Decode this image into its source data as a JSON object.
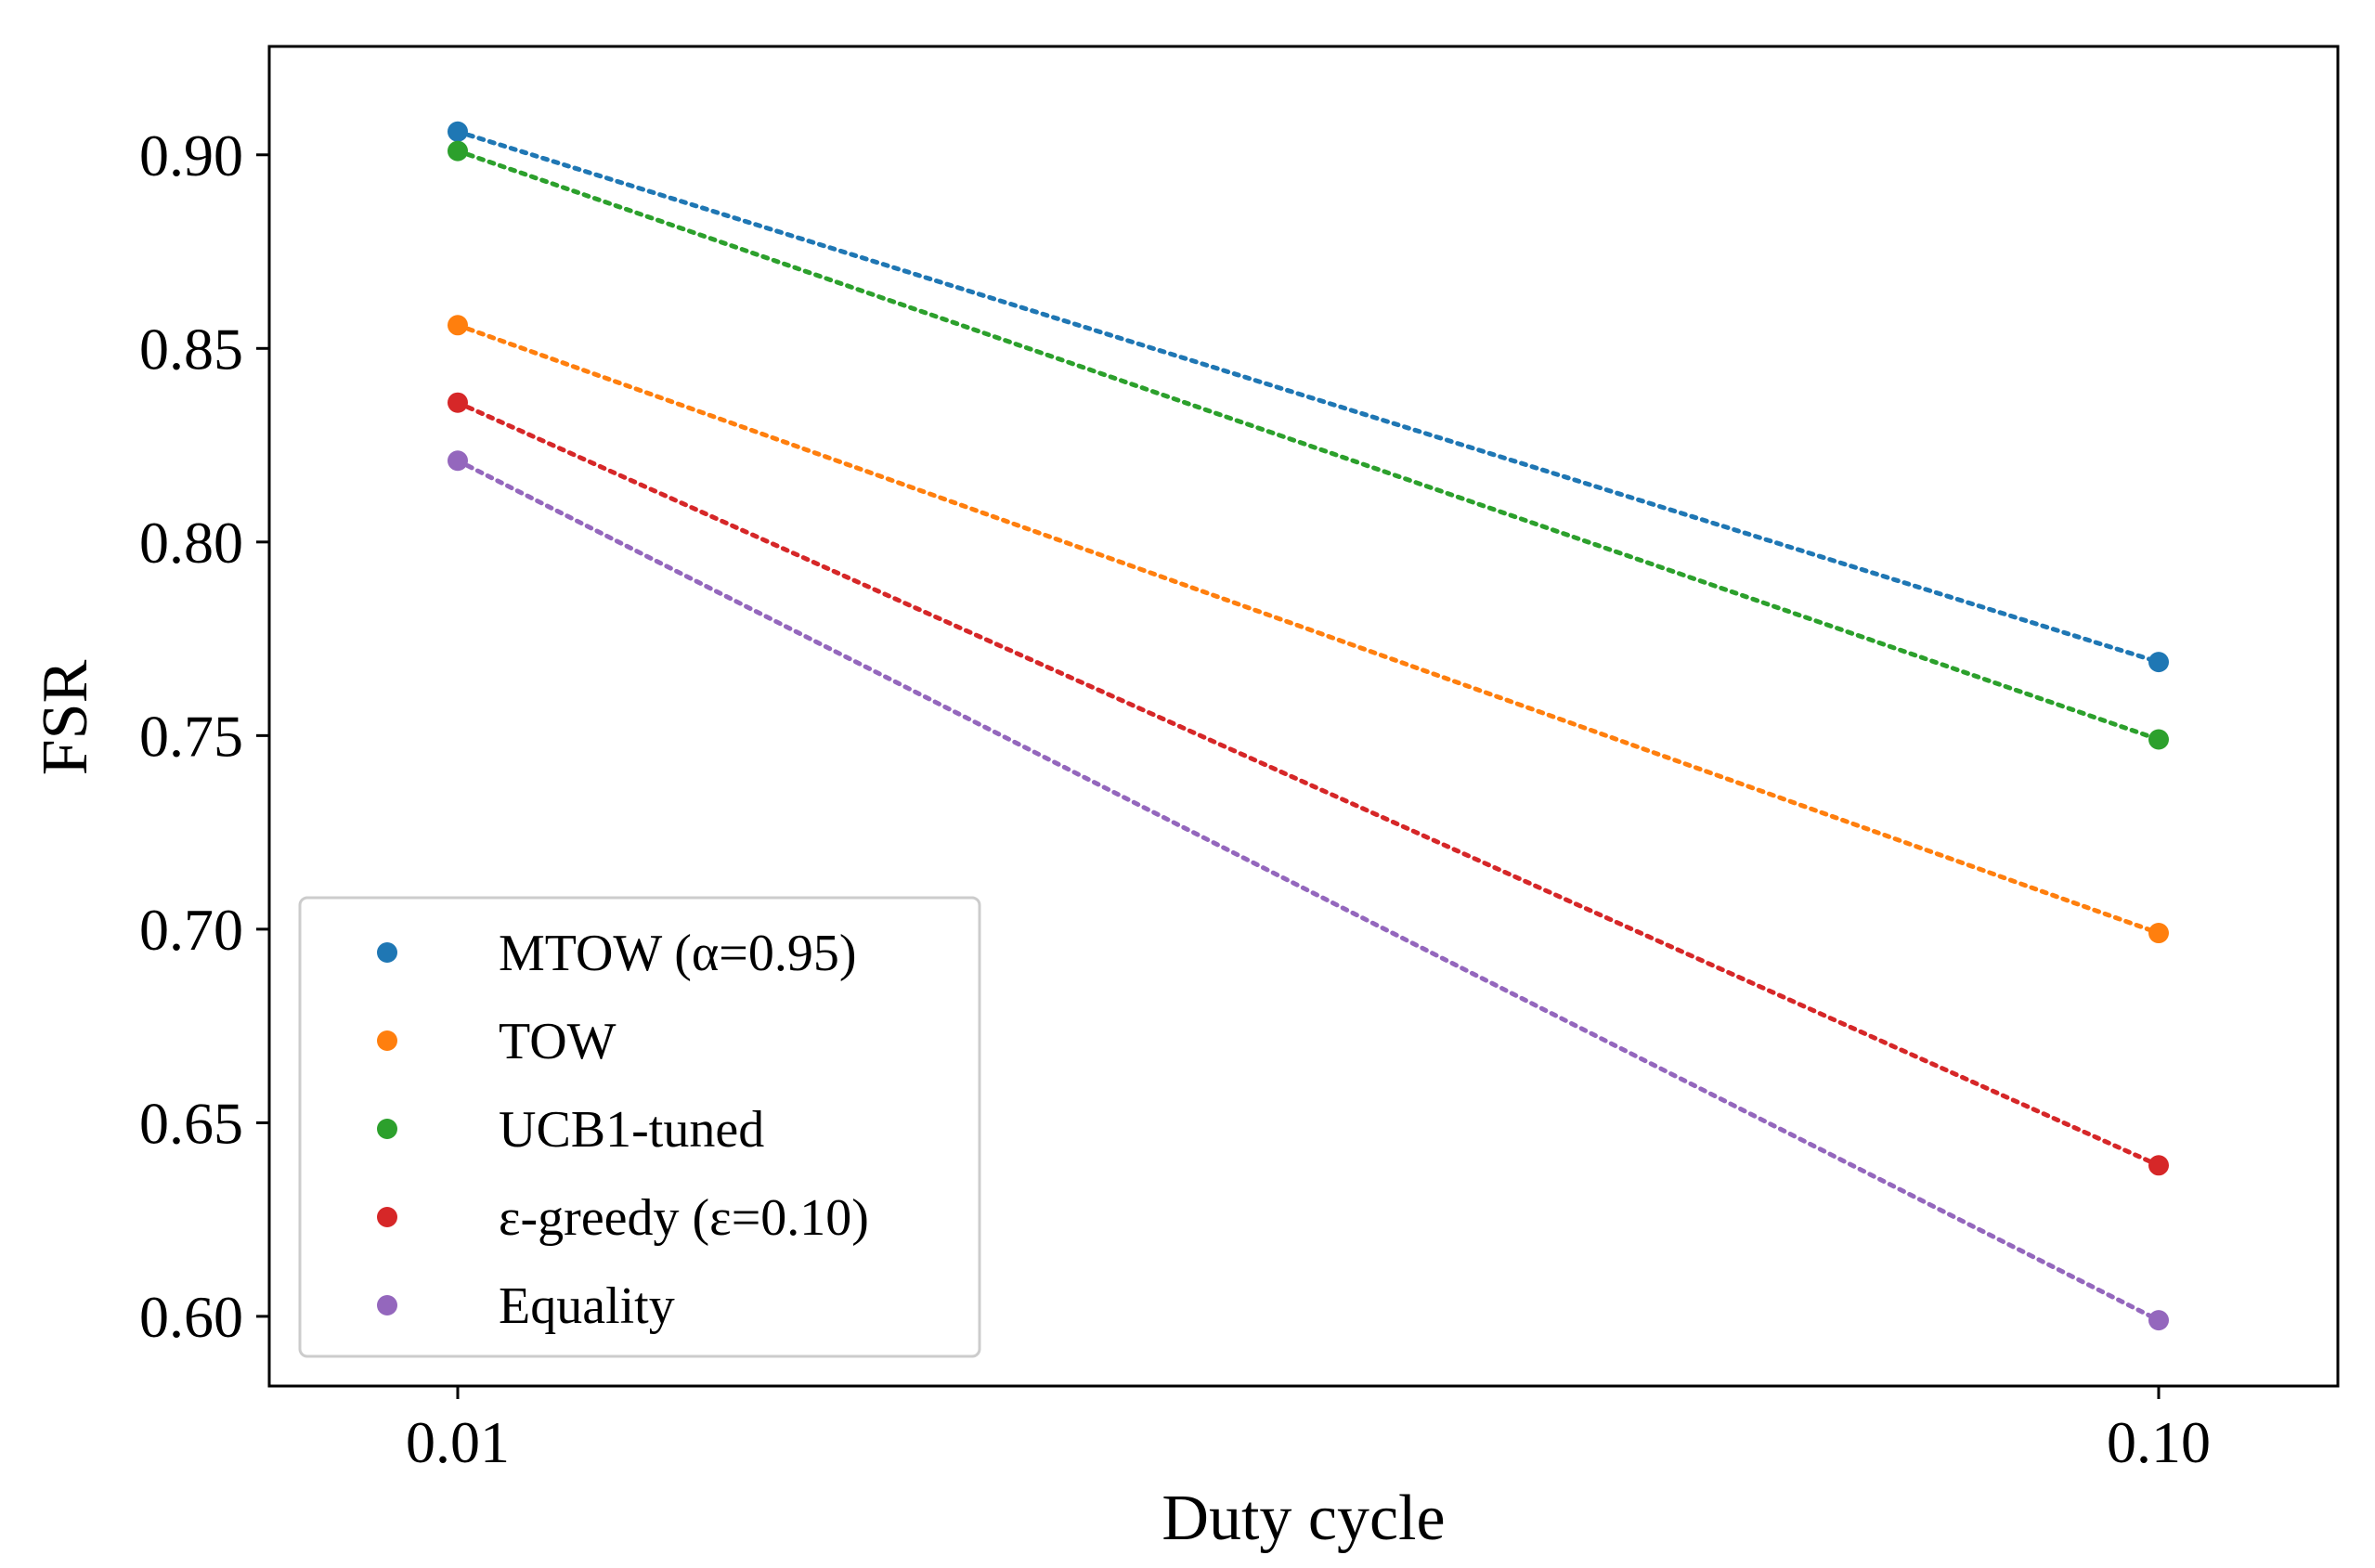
{
  "chart_data": {
    "type": "line",
    "line_style": "dotted",
    "marker": "circle",
    "xlabel": "Duty cycle",
    "ylabel": "FSR",
    "x_ticks": [
      "0.01",
      "0.10"
    ],
    "y_ticks": [
      "0.60",
      "0.65",
      "0.70",
      "0.75",
      "0.80",
      "0.85",
      "0.90"
    ],
    "ylim": [
      0.582,
      0.928
    ],
    "grid": false,
    "legend_position": "lower-left",
    "series": [
      {
        "name": "MTOW (α=0.95)",
        "color": "#1f77b4",
        "values": [
          0.906,
          0.769
        ]
      },
      {
        "name": "TOW",
        "color": "#ff7f0e",
        "values": [
          0.856,
          0.699
        ]
      },
      {
        "name": "UCB1-tuned",
        "color": "#2ca02c",
        "values": [
          0.901,
          0.749
        ]
      },
      {
        "name": "ε-greedy (ε=0.10)",
        "color": "#d62728",
        "values": [
          0.836,
          0.639
        ]
      },
      {
        "name": "Equality",
        "color": "#9467bd",
        "values": [
          0.821,
          0.599
        ]
      }
    ]
  }
}
